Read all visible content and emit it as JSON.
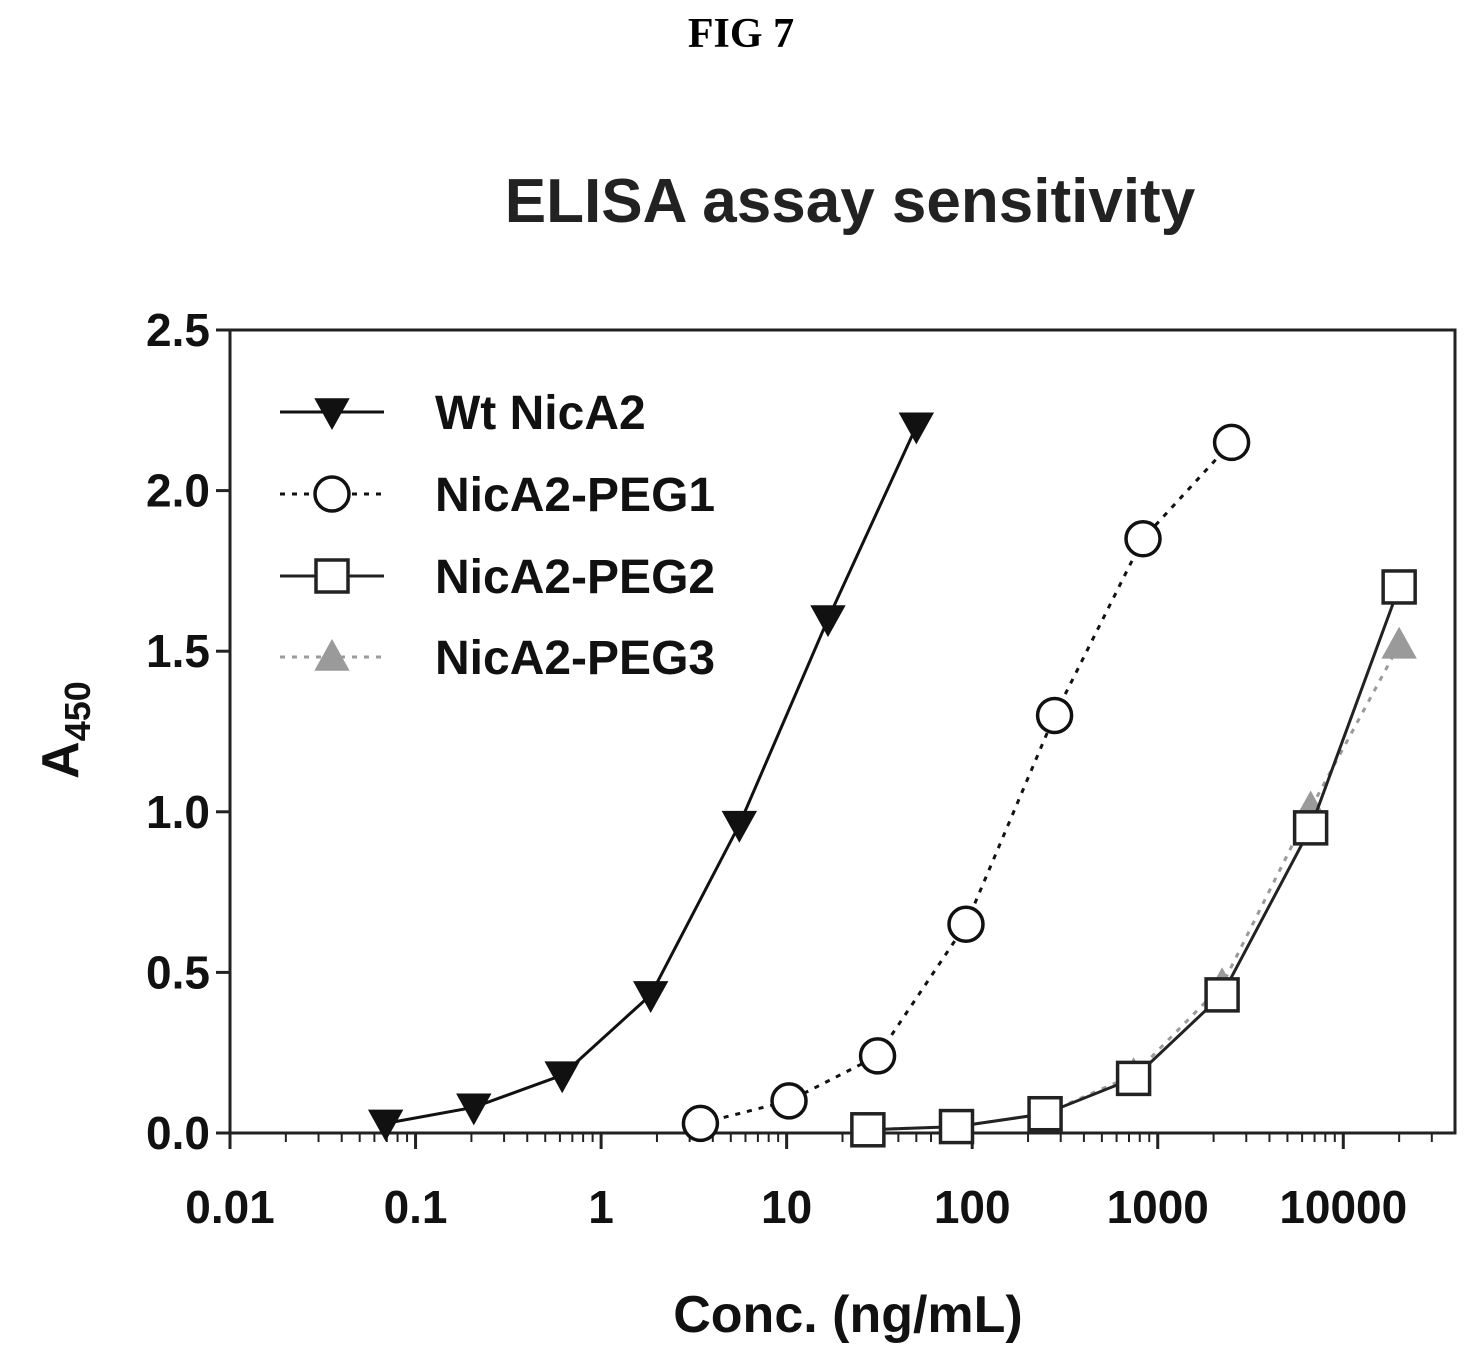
{
  "figure_label": "FIG 7",
  "chart_data": {
    "type": "line",
    "title": "ELISA assay sensitivity",
    "xlabel": "Conc. (ng/mL)",
    "ylabel": "A",
    "ylabel_sub": "450",
    "xscale": "log",
    "xlim": [
      0.01,
      40000
    ],
    "ylim": [
      0,
      2.5
    ],
    "xticks": [
      0.01,
      0.1,
      1,
      10,
      100,
      1000,
      10000
    ],
    "xtick_labels": [
      "0.01",
      "0.1",
      "1",
      "10",
      "100",
      "1000",
      "10000"
    ],
    "yticks": [
      0.0,
      0.5,
      1.0,
      1.5,
      2.0,
      2.5
    ],
    "ytick_labels": [
      "0.0",
      "0.5",
      "1.0",
      "1.5",
      "2.0",
      "2.5"
    ],
    "grid": false,
    "legend_position": "top-left",
    "series": [
      {
        "name": "Wt NicA2",
        "marker": "triangle-down-filled",
        "line": "solid",
        "color": "#111111",
        "x": [
          0.069,
          0.206,
          0.617,
          1.85,
          5.56,
          16.7,
          50
        ],
        "y": [
          0.03,
          0.08,
          0.18,
          0.43,
          0.96,
          1.6,
          2.2
        ]
      },
      {
        "name": "NicA2-PEG1",
        "marker": "circle-open",
        "line": "dotted",
        "color": "#111111",
        "x": [
          3.43,
          10.3,
          30.9,
          92.6,
          278,
          833,
          2500
        ],
        "y": [
          0.03,
          0.1,
          0.24,
          0.65,
          1.3,
          1.85,
          2.15
        ]
      },
      {
        "name": "NicA2-PEG2",
        "marker": "square-open",
        "line": "solid",
        "color": "#222222",
        "x": [
          27.4,
          82.3,
          247,
          741,
          2222,
          6667,
          20000
        ],
        "y": [
          0.01,
          0.02,
          0.06,
          0.17,
          0.43,
          0.95,
          1.7
        ]
      },
      {
        "name": "NicA2-PEG3",
        "marker": "triangle-up-filled",
        "line": "dotted",
        "color": "#9a9a9a",
        "x": [
          27.4,
          82.3,
          247,
          741,
          2222,
          6667,
          20000
        ],
        "y": [
          0.01,
          0.02,
          0.06,
          0.18,
          0.46,
          1.01,
          1.52
        ]
      }
    ]
  }
}
